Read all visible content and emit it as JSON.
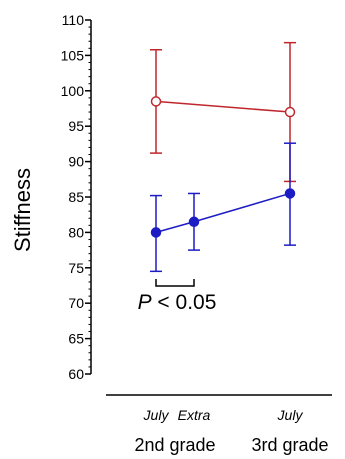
{
  "chart_data": {
    "type": "line",
    "title": "",
    "xlabel": "",
    "ylabel": "Stiffness",
    "ylim": [
      60,
      110
    ],
    "y_ticks": [
      60,
      65,
      70,
      75,
      80,
      85,
      90,
      95,
      100,
      105,
      110
    ],
    "y_tick_labels": [
      "60",
      "65",
      "70",
      "75",
      "80",
      "85",
      "90",
      "95",
      "100",
      "105",
      "110"
    ],
    "grid": false,
    "legend": "none",
    "categories": [
      "July",
      "Extra",
      "July"
    ],
    "groups": [
      {
        "label": "2nd grade",
        "categories": [
          "July",
          "Extra"
        ]
      },
      {
        "label": "3rd grade",
        "categories": [
          "July"
        ]
      }
    ],
    "series": [
      {
        "color": "#c0272d",
        "marker": "open-circle",
        "x": [
          "2nd grade July",
          "3rd grade July"
        ],
        "values": [
          98.5,
          97.0
        ],
        "error_low": [
          91.2,
          87.2
        ],
        "error_high": [
          105.8,
          106.8
        ]
      },
      {
        "color": "#1c1cc4",
        "marker": "filled-circle",
        "x": [
          "2nd grade July",
          "2nd grade Extra",
          "3rd grade July"
        ],
        "values": [
          80.0,
          81.5,
          85.5
        ],
        "error_low": [
          74.5,
          77.5,
          78.2
        ],
        "error_high": [
          85.2,
          85.5,
          92.6
        ]
      }
    ],
    "annotations": [
      {
        "text_prefix": "P",
        "text_suffix": " < 0.05",
        "between": [
          "2nd grade July",
          "2nd grade Extra"
        ]
      }
    ]
  }
}
